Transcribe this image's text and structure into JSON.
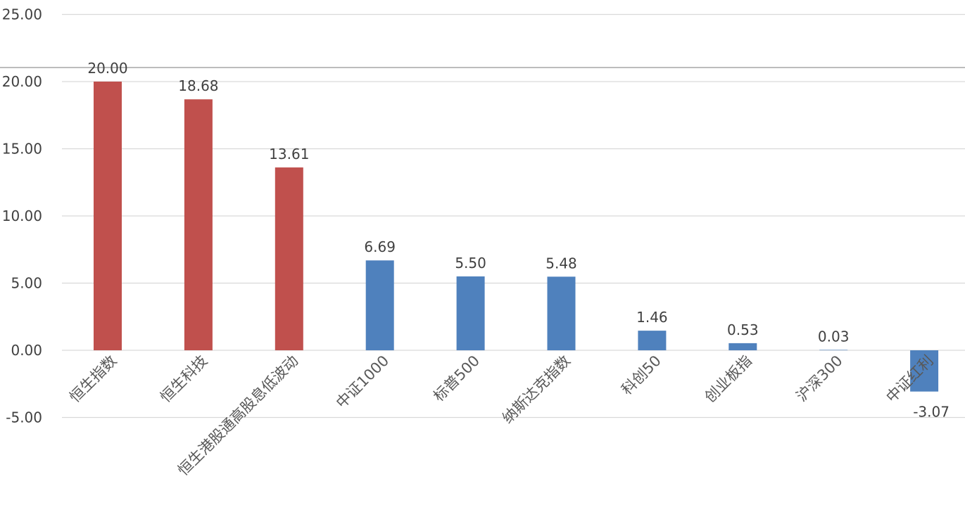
{
  "chart_data": {
    "type": "bar",
    "categories": [
      "恒生指数",
      "恒生科技",
      "恒生港股通高股息低波动",
      "中证1000",
      "标普500",
      "纳斯达克指数",
      "科创50",
      "创业板指",
      "沪深300",
      "中证红利"
    ],
    "values": [
      20.0,
      18.68,
      13.61,
      6.69,
      5.5,
      5.48,
      1.46,
      0.53,
      0.03,
      -3.07
    ],
    "value_labels": [
      "20.00",
      "18.68",
      "13.61",
      "6.69",
      "5.50",
      "5.48",
      "1.46",
      "0.53",
      "0.03",
      "-3.07"
    ],
    "y_ticks": [
      "25.00",
      "20.00",
      "15.00",
      "10.00",
      "5.00",
      "0.00",
      "-5.00"
    ],
    "ylim": [
      -5,
      25
    ],
    "grid": true,
    "legend": "none",
    "colors": {
      "highlight": "#C0504D",
      "normal": "#4F81BD",
      "grid": "#D9D9D9",
      "separator": "#A6A6A6"
    },
    "highlight_count": 3
  }
}
